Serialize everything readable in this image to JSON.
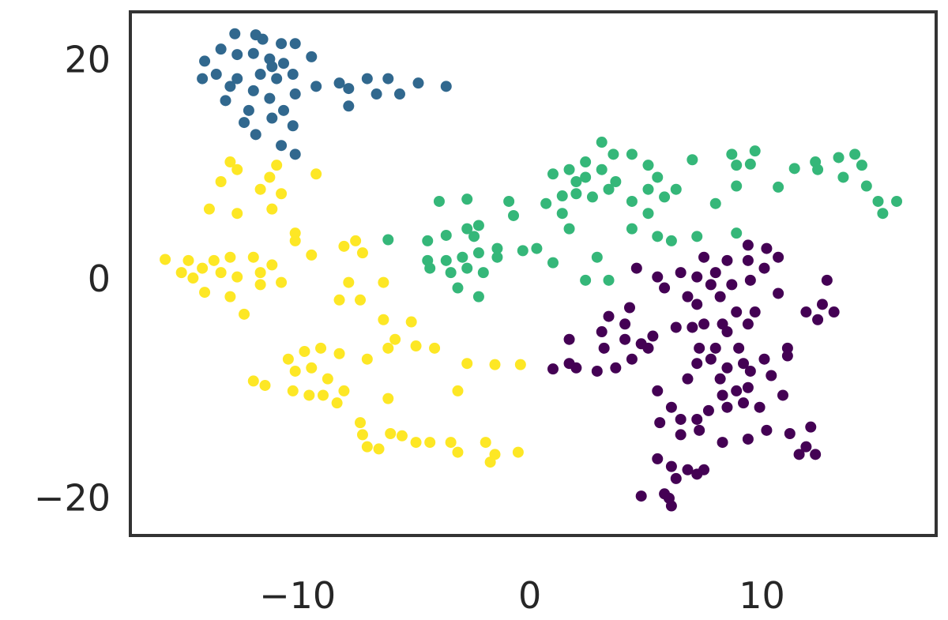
{
  "chart_data": {
    "type": "scatter",
    "title": "",
    "xlabel": "",
    "ylabel": "",
    "xlim": [
      -17.2,
      17.5
    ],
    "ylim": [
      -23.5,
      24.3
    ],
    "grid": false,
    "x_ticks": [
      -10,
      0,
      10
    ],
    "y_ticks": [
      -20,
      0,
      20
    ],
    "x_tick_labels": [
      "−10",
      "0",
      "10"
    ],
    "y_tick_labels": [
      "−20",
      "0",
      "20"
    ],
    "groups": [
      {
        "color": "#31688e",
        "points": [
          [
            -12.7,
            22.3
          ],
          [
            -11.8,
            22.2
          ],
          [
            -11.5,
            21.8
          ],
          [
            -10.7,
            21.4
          ],
          [
            -10.1,
            21.4
          ],
          [
            -14.0,
            19.8
          ],
          [
            -13.3,
            20.9
          ],
          [
            -12.6,
            20.4
          ],
          [
            -11.9,
            20.5
          ],
          [
            -11.2,
            20.0
          ],
          [
            -10.6,
            19.6
          ],
          [
            -9.4,
            20.2
          ],
          [
            -14.1,
            18.2
          ],
          [
            -13.5,
            18.6
          ],
          [
            -12.6,
            18.2
          ],
          [
            -11.6,
            18.6
          ],
          [
            -10.9,
            18.2
          ],
          [
            -10.2,
            18.6
          ],
          [
            -9.2,
            17.5
          ],
          [
            -8.2,
            17.8
          ],
          [
            -7.8,
            17.3
          ],
          [
            -7.0,
            18.2
          ],
          [
            -6.1,
            18.2
          ],
          [
            -4.8,
            17.8
          ],
          [
            -3.6,
            17.5
          ],
          [
            -13.1,
            16.2
          ],
          [
            -11.9,
            17.1
          ],
          [
            -11.2,
            16.4
          ],
          [
            -10.1,
            16.8
          ],
          [
            -7.8,
            15.7
          ],
          [
            -6.6,
            16.8
          ],
          [
            -5.6,
            16.8
          ],
          [
            -12.3,
            14.2
          ],
          [
            -11.1,
            14.6
          ],
          [
            -10.2,
            13.9
          ],
          [
            -11.8,
            13.1
          ],
          [
            -10.7,
            12.1
          ],
          [
            -10.1,
            11.3
          ],
          [
            -12.1,
            15.3
          ],
          [
            -10.6,
            15.3
          ],
          [
            -12.9,
            17.5
          ],
          [
            -11.1,
            19.3
          ]
        ]
      },
      {
        "color": "#fde725",
        "points": [
          [
            -12.9,
            10.6
          ],
          [
            -12.6,
            9.9
          ],
          [
            -13.3,
            8.8
          ],
          [
            -10.9,
            10.3
          ],
          [
            -11.2,
            9.2
          ],
          [
            -9.2,
            9.5
          ],
          [
            -11.6,
            8.1
          ],
          [
            -10.7,
            7.7
          ],
          [
            -13.8,
            6.3
          ],
          [
            -12.6,
            5.9
          ],
          [
            -11.1,
            6.3
          ],
          [
            -10.1,
            4.1
          ],
          [
            -10.1,
            3.4
          ],
          [
            -15.7,
            1.7
          ],
          [
            -14.7,
            1.6
          ],
          [
            -13.6,
            1.6
          ],
          [
            -12.9,
            1.9
          ],
          [
            -11.9,
            1.9
          ],
          [
            -11.1,
            1.2
          ],
          [
            -9.4,
            2.1
          ],
          [
            -15.0,
            0.5
          ],
          [
            -14.1,
            0.9
          ],
          [
            -13.3,
            0.5
          ],
          [
            -12.6,
            0.1
          ],
          [
            -11.6,
            0.5
          ],
          [
            -10.7,
            -0.4
          ],
          [
            -14.5,
            0.0
          ],
          [
            -14.0,
            -1.3
          ],
          [
            -12.9,
            -1.7
          ],
          [
            -11.6,
            -0.6
          ],
          [
            -12.3,
            -3.3
          ],
          [
            -8.0,
            2.9
          ],
          [
            -7.5,
            3.4
          ],
          [
            -7.8,
            -0.4
          ],
          [
            -8.2,
            -2.0
          ],
          [
            -7.3,
            -2.0
          ],
          [
            -6.3,
            -0.4
          ],
          [
            -6.3,
            -3.8
          ],
          [
            -5.1,
            -4.0
          ],
          [
            -5.8,
            -5.6
          ],
          [
            -4.9,
            -6.2
          ],
          [
            -4.1,
            -6.4
          ],
          [
            -10.4,
            -7.4
          ],
          [
            -9.7,
            -6.7
          ],
          [
            -9.0,
            -6.4
          ],
          [
            -8.2,
            -6.9
          ],
          [
            -10.1,
            -8.5
          ],
          [
            -9.4,
            -8.2
          ],
          [
            -8.7,
            -9.2
          ],
          [
            -10.2,
            -10.3
          ],
          [
            -9.5,
            -10.7
          ],
          [
            -8.9,
            -10.7
          ],
          [
            -8.0,
            -10.3
          ],
          [
            -8.3,
            -11.4
          ],
          [
            -11.9,
            -9.4
          ],
          [
            -11.4,
            -9.8
          ],
          [
            -7.0,
            -7.4
          ],
          [
            -6.1,
            -6.4
          ],
          [
            -3.1,
            -10.3
          ],
          [
            -6.1,
            -11.0
          ],
          [
            -7.3,
            -13.2
          ],
          [
            -7.2,
            -14.3
          ],
          [
            -7.0,
            -15.4
          ],
          [
            -6.5,
            -15.6
          ],
          [
            -6.0,
            -14.2
          ],
          [
            -5.5,
            -14.4
          ],
          [
            -4.9,
            -15.0
          ],
          [
            -4.3,
            -15.0
          ],
          [
            -3.4,
            -15.0
          ],
          [
            -3.1,
            -15.9
          ],
          [
            -1.9,
            -15.0
          ],
          [
            -1.5,
            -16.1
          ],
          [
            -0.5,
            -15.9
          ],
          [
            -1.5,
            -7.9
          ],
          [
            -0.4,
            -7.9
          ],
          [
            -2.7,
            -7.8
          ],
          [
            -1.7,
            -16.8
          ],
          [
            -7.2,
            2.3
          ]
        ]
      },
      {
        "color": "#35b779",
        "points": [
          [
            -6.1,
            3.5
          ],
          [
            -4.4,
            3.4
          ],
          [
            -3.6,
            3.9
          ],
          [
            -2.7,
            4.5
          ],
          [
            -2.2,
            4.8
          ],
          [
            -4.4,
            1.6
          ],
          [
            -3.6,
            1.6
          ],
          [
            -2.9,
            1.9
          ],
          [
            -2.2,
            2.3
          ],
          [
            -1.4,
            2.7
          ],
          [
            -4.3,
            0.9
          ],
          [
            -3.4,
            0.5
          ],
          [
            -2.7,
            0.9
          ],
          [
            -2.0,
            0.5
          ],
          [
            -3.1,
            -0.9
          ],
          [
            -2.2,
            -1.7
          ],
          [
            -1.4,
            1.9
          ],
          [
            -0.3,
            2.5
          ],
          [
            0.3,
            2.7
          ],
          [
            -3.9,
            7.0
          ],
          [
            -2.7,
            7.2
          ],
          [
            -0.9,
            7.0
          ],
          [
            -0.7,
            5.7
          ],
          [
            -2.4,
            3.8
          ],
          [
            1.0,
            1.4
          ],
          [
            0.7,
            6.8
          ],
          [
            1.0,
            9.5
          ],
          [
            1.7,
            9.9
          ],
          [
            2.4,
            10.6
          ],
          [
            3.1,
            12.4
          ],
          [
            3.6,
            11.3
          ],
          [
            4.4,
            11.3
          ],
          [
            2.0,
            8.8
          ],
          [
            2.4,
            9.2
          ],
          [
            3.1,
            9.9
          ],
          [
            3.7,
            8.8
          ],
          [
            5.1,
            10.3
          ],
          [
            1.4,
            7.5
          ],
          [
            2.0,
            7.7
          ],
          [
            2.7,
            7.4
          ],
          [
            3.4,
            8.1
          ],
          [
            4.4,
            7.0
          ],
          [
            5.1,
            8.1
          ],
          [
            5.8,
            7.4
          ],
          [
            6.3,
            8.1
          ],
          [
            5.1,
            5.9
          ],
          [
            4.4,
            4.5
          ],
          [
            5.5,
            3.8
          ],
          [
            6.1,
            3.4
          ],
          [
            7.2,
            3.8
          ],
          [
            8.0,
            6.8
          ],
          [
            8.7,
            11.3
          ],
          [
            9.7,
            11.6
          ],
          [
            8.9,
            10.3
          ],
          [
            9.5,
            10.4
          ],
          [
            7.0,
            10.8
          ],
          [
            8.9,
            8.4
          ],
          [
            10.7,
            8.3
          ],
          [
            11.4,
            10.0
          ],
          [
            12.3,
            10.6
          ],
          [
            12.4,
            9.9
          ],
          [
            13.3,
            11.0
          ],
          [
            14.0,
            11.3
          ],
          [
            13.5,
            9.2
          ],
          [
            14.3,
            10.3
          ],
          [
            14.5,
            8.4
          ],
          [
            15.0,
            7.0
          ],
          [
            15.8,
            7.0
          ],
          [
            15.2,
            5.9
          ],
          [
            2.4,
            -0.2
          ],
          [
            3.4,
            -0.2
          ],
          [
            2.9,
            1.9
          ],
          [
            1.7,
            4.5
          ],
          [
            1.4,
            5.9
          ],
          [
            8.9,
            4.1
          ],
          [
            5.5,
            9.2
          ]
        ]
      },
      {
        "color": "#440154",
        "points": [
          [
            9.4,
            3.0
          ],
          [
            10.2,
            2.7
          ],
          [
            10.7,
            1.9
          ],
          [
            8.5,
            1.6
          ],
          [
            9.4,
            1.6
          ],
          [
            10.1,
            0.9
          ],
          [
            7.5,
            1.9
          ],
          [
            6.5,
            0.5
          ],
          [
            7.2,
            0.1
          ],
          [
            8.0,
            0.5
          ],
          [
            5.5,
            0.1
          ],
          [
            4.6,
            0.9
          ],
          [
            5.8,
            -0.9
          ],
          [
            6.8,
            -1.7
          ],
          [
            7.8,
            -0.6
          ],
          [
            8.7,
            -0.6
          ],
          [
            9.5,
            -0.2
          ],
          [
            7.2,
            -2.4
          ],
          [
            8.2,
            -1.7
          ],
          [
            8.9,
            -3.1
          ],
          [
            9.7,
            -3.1
          ],
          [
            10.7,
            -1.4
          ],
          [
            12.8,
            -0.2
          ],
          [
            12.6,
            -2.4
          ],
          [
            11.9,
            -3.1
          ],
          [
            12.4,
            -3.8
          ],
          [
            13.1,
            -3.1
          ],
          [
            7.5,
            -4.2
          ],
          [
            8.3,
            -4.2
          ],
          [
            9.4,
            -4.2
          ],
          [
            6.3,
            -4.5
          ],
          [
            7.0,
            -4.5
          ],
          [
            4.3,
            -2.7
          ],
          [
            3.4,
            -3.5
          ],
          [
            4.1,
            -4.2
          ],
          [
            3.1,
            -4.9
          ],
          [
            3.2,
            -6.4
          ],
          [
            1.7,
            -5.6
          ],
          [
            4.1,
            -5.6
          ],
          [
            4.8,
            -6.0
          ],
          [
            5.3,
            -5.3
          ],
          [
            5.1,
            -6.4
          ],
          [
            4.4,
            -7.4
          ],
          [
            3.7,
            -8.2
          ],
          [
            2.9,
            -8.5
          ],
          [
            2.0,
            -8.2
          ],
          [
            1.0,
            -8.3
          ],
          [
            1.7,
            -7.8
          ],
          [
            7.3,
            -6.4
          ],
          [
            8.0,
            -6.4
          ],
          [
            9.0,
            -6.4
          ],
          [
            7.8,
            -7.4
          ],
          [
            7.2,
            -7.8
          ],
          [
            8.5,
            -8.2
          ],
          [
            9.2,
            -7.8
          ],
          [
            10.1,
            -7.4
          ],
          [
            11.1,
            -6.4
          ],
          [
            11.1,
            -7.1
          ],
          [
            6.8,
            -9.2
          ],
          [
            8.2,
            -9.2
          ],
          [
            8.9,
            -10.3
          ],
          [
            9.4,
            -10.0
          ],
          [
            9.9,
            -11.8
          ],
          [
            10.9,
            -10.7
          ],
          [
            5.5,
            -10.3
          ],
          [
            6.1,
            -11.8
          ],
          [
            5.6,
            -13.2
          ],
          [
            6.5,
            -12.9
          ],
          [
            7.2,
            -12.9
          ],
          [
            8.3,
            -10.7
          ],
          [
            9.2,
            -11.4
          ],
          [
            8.5,
            -11.8
          ],
          [
            7.7,
            -12.1
          ],
          [
            6.5,
            -14.3
          ],
          [
            7.3,
            -13.9
          ],
          [
            8.3,
            -15.0
          ],
          [
            9.4,
            -14.7
          ],
          [
            10.2,
            -13.9
          ],
          [
            11.2,
            -14.2
          ],
          [
            11.9,
            -15.4
          ],
          [
            12.3,
            -16.1
          ],
          [
            11.6,
            -16.1
          ],
          [
            12.1,
            -13.6
          ],
          [
            5.5,
            -16.5
          ],
          [
            6.1,
            -17.2
          ],
          [
            6.3,
            -18.3
          ],
          [
            6.8,
            -17.5
          ],
          [
            7.5,
            -17.5
          ],
          [
            7.2,
            -17.9
          ],
          [
            4.8,
            -19.9
          ],
          [
            5.8,
            -19.7
          ],
          [
            6.1,
            -20.8
          ],
          [
            6.0,
            -20.1
          ],
          [
            9.5,
            -8.5
          ],
          [
            10.4,
            -8.9
          ],
          [
            8.5,
            -4.9
          ]
        ]
      }
    ]
  }
}
